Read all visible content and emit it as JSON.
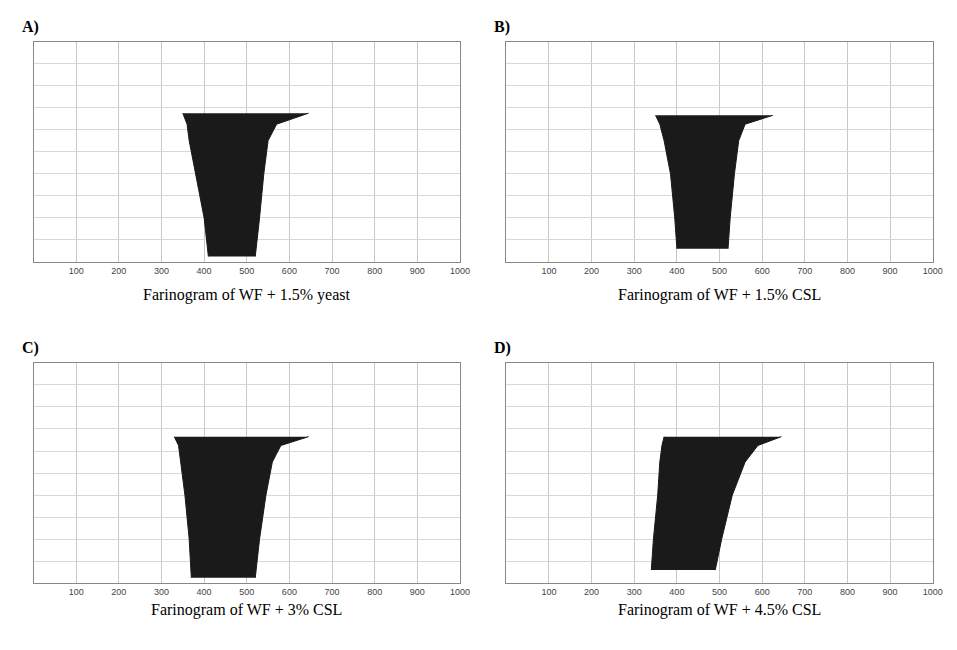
{
  "chart_data": [
    {
      "panel": "A)",
      "title": "Farinogram of WF + 1.5% yeast",
      "type": "area",
      "orientation": "horizontal",
      "time": [
        6.5,
        7.5,
        9,
        12,
        16,
        19.5
      ],
      "lower": [
        350,
        360,
        365,
        380,
        400,
        410
      ],
      "upper": [
        645,
        570,
        550,
        540,
        530,
        520
      ],
      "color": "#1a1a1a",
      "xlim": [
        0,
        1000
      ],
      "xticks": [
        100,
        200,
        300,
        400,
        500,
        600,
        700,
        800,
        900,
        1000
      ],
      "ylim": [
        0,
        20
      ],
      "yticks": [
        0,
        2,
        4,
        6,
        8,
        10,
        12,
        14,
        16,
        18,
        20
      ],
      "grid": true,
      "tick_labels": "x"
    },
    {
      "panel": "B)",
      "title": "Farinogram of WF + 1.5% CSL",
      "type": "area",
      "orientation": "horizontal",
      "time": [
        6.7,
        7.5,
        9,
        12,
        16,
        18.8
      ],
      "lower": [
        350,
        360,
        370,
        385,
        395,
        400
      ],
      "upper": [
        625,
        560,
        545,
        535,
        525,
        520
      ],
      "color": "#1a1a1a",
      "xlim": [
        0,
        1000
      ],
      "xticks": [
        100,
        200,
        300,
        400,
        500,
        600,
        700,
        800,
        900,
        1000
      ],
      "ylim": [
        0,
        20
      ],
      "yticks": [
        0,
        2,
        4,
        6,
        8,
        10,
        12,
        14,
        16,
        18,
        20
      ],
      "grid": true,
      "tick_labels": "x"
    },
    {
      "panel": "C)",
      "title": "Farinogram of WF + 3% CSL",
      "type": "area",
      "orientation": "horizontal",
      "time": [
        6.7,
        7.5,
        9,
        12,
        16,
        19.5
      ],
      "lower": [
        330,
        340,
        345,
        355,
        365,
        370
      ],
      "upper": [
        645,
        580,
        560,
        545,
        530,
        520
      ],
      "color": "#1a1a1a",
      "xlim": [
        0,
        1000
      ],
      "xticks": [
        100,
        200,
        300,
        400,
        500,
        600,
        700,
        800,
        900,
        1000
      ],
      "ylim": [
        0,
        20
      ],
      "yticks": [
        0,
        2,
        4,
        6,
        8,
        10,
        12,
        14,
        16,
        18,
        20
      ],
      "grid": true,
      "tick_labels": "x"
    },
    {
      "panel": "D)",
      "title": "Farinogram of WF + 4.5% CSL",
      "type": "area",
      "orientation": "horizontal",
      "time": [
        6.7,
        7.5,
        9,
        12,
        16,
        18.8
      ],
      "lower": [
        370,
        365,
        360,
        355,
        345,
        340
      ],
      "upper": [
        645,
        590,
        560,
        530,
        505,
        490
      ],
      "color": "#1a1a1a",
      "xlim": [
        0,
        1000
      ],
      "xticks": [
        100,
        200,
        300,
        400,
        500,
        600,
        700,
        800,
        900,
        1000
      ],
      "ylim": [
        0,
        20
      ],
      "yticks": [
        0,
        2,
        4,
        6,
        8,
        10,
        12,
        14,
        16,
        18,
        20
      ],
      "grid": true,
      "tick_labels": "x"
    }
  ]
}
